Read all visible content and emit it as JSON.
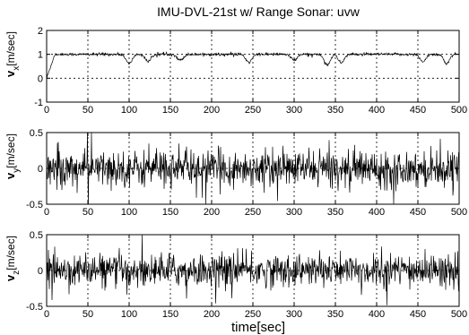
{
  "title": "IMU-DVL-21st w/ Range Sonar: uvw",
  "chart_data": [
    {
      "type": "line",
      "id": "vx",
      "title": "IMU-DVL-21st w/ Range Sonar: uvw",
      "ylabel_main": "v",
      "ylabel_sub": "x",
      "ylabel_unit": "[m/sec]",
      "xlabel": "",
      "xlim": [
        0,
        500
      ],
      "ylim": [
        -1,
        2
      ],
      "xticks": [
        "0",
        "50",
        "100",
        "150",
        "200",
        "250",
        "300",
        "350",
        "400",
        "450",
        "500"
      ],
      "yticks": [
        -1,
        0,
        1,
        2
      ],
      "ytick_labels": [
        "-1",
        "0",
        "1",
        "2"
      ],
      "grid": "dashed-vertical",
      "zero_dashed": true,
      "series": [
        {
          "baseline": 1.0,
          "noise": 0.05,
          "startup": {
            "from": 0.0,
            "to": 1.0,
            "until": 10
          },
          "dips": [
            [
              100,
              0.6
            ],
            [
              123,
              0.7
            ],
            [
              162,
              0.75
            ],
            [
              245,
              0.65
            ],
            [
              300,
              0.75
            ],
            [
              340,
              0.55
            ],
            [
              357,
              0.65
            ],
            [
              456,
              0.7
            ],
            [
              485,
              0.6
            ]
          ],
          "color": "#000000"
        }
      ]
    },
    {
      "type": "line",
      "id": "vy",
      "ylabel_main": "v",
      "ylabel_sub": "y",
      "ylabel_unit": "[m/sec]",
      "xlabel": "",
      "xlim": [
        0,
        500
      ],
      "ylim": [
        -0.5,
        0.5
      ],
      "xticks": [
        "0",
        "50",
        "100",
        "150",
        "200",
        "250",
        "300",
        "350",
        "400",
        "450",
        "500"
      ],
      "yticks": [
        -0.5,
        0,
        0.5
      ],
      "ytick_labels": [
        "-0.5",
        "0",
        "0.5"
      ],
      "grid": "dashed-vertical",
      "zero_dashed": false,
      "series": [
        {
          "baseline": 0.0,
          "noise": 0.22,
          "color": "#000000"
        }
      ]
    },
    {
      "type": "line",
      "id": "vz",
      "ylabel_main": "v",
      "ylabel_sub": "z",
      "ylabel_unit": "[m/sec]",
      "xlabel": "time[sec]",
      "xlim": [
        0,
        500
      ],
      "ylim": [
        -0.5,
        0.5
      ],
      "xticks": [
        "0",
        "50",
        "100",
        "150",
        "200",
        "250",
        "300",
        "350",
        "400",
        "450",
        "500"
      ],
      "yticks": [
        -0.5,
        0,
        0.5
      ],
      "ytick_labels": [
        "-0.5",
        "0",
        "0.5"
      ],
      "grid": "dashed-vertical",
      "zero_dashed": false,
      "series": [
        {
          "baseline": 0.0,
          "noise": 0.2,
          "color": "#000000"
        }
      ]
    }
  ]
}
